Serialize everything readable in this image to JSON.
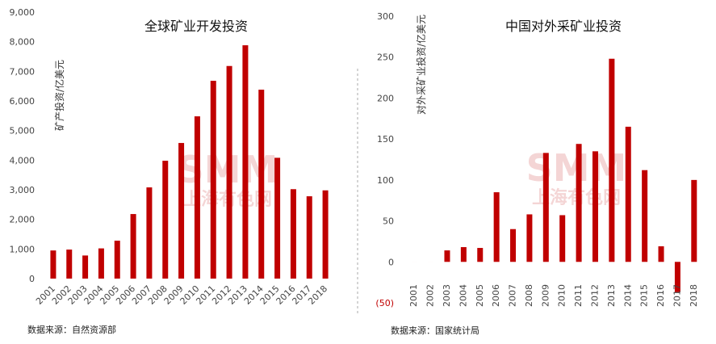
{
  "chart_data": [
    {
      "type": "bar",
      "title": "全球矿业开发投资",
      "ylabel": "矿产投资/亿美元",
      "xlabel": "",
      "ylim": [
        0,
        9000
      ],
      "yticks": [
        "0",
        "1,000",
        "2,000",
        "3,000",
        "4,000",
        "5,000",
        "6,000",
        "7,000",
        "8,000",
        "9,000"
      ],
      "ytick_values": [
        0,
        1000,
        2000,
        3000,
        4000,
        5000,
        6000,
        7000,
        8000,
        9000
      ],
      "categories": [
        "2001",
        "2002",
        "2003",
        "2004",
        "2005",
        "2006",
        "2007",
        "2008",
        "2009",
        "2010",
        "2011",
        "2012",
        "2013",
        "2014",
        "2015",
        "2016",
        "2017",
        "2018"
      ],
      "values": [
        950,
        980,
        780,
        1020,
        1280,
        2180,
        3080,
        3980,
        4580,
        5480,
        6680,
        7180,
        7880,
        6380,
        4080,
        3020,
        2780,
        2980
      ],
      "color": "#c00000",
      "source": "数据来源：自然资源部"
    },
    {
      "type": "bar",
      "title": "中国对外采矿业投资",
      "ylabel": "对外采矿业投资/亿美元",
      "xlabel": "",
      "ylim": [
        -50,
        300
      ],
      "yticks": [
        "(50)",
        "0",
        "50",
        "100",
        "150",
        "200",
        "250",
        "300"
      ],
      "ytick_values": [
        -50,
        0,
        50,
        100,
        150,
        200,
        250,
        300
      ],
      "categories": [
        "2001",
        "2002",
        "2003",
        "2004",
        "2005",
        "2006",
        "2007",
        "2008",
        "2009",
        "2010",
        "2011",
        "2012",
        "2013",
        "2014",
        "2015",
        "2016",
        "2017",
        "2018"
      ],
      "values": [
        0,
        0,
        14,
        18,
        17,
        85,
        40,
        58,
        133,
        57,
        144,
        135,
        248,
        165,
        112,
        19,
        -37,
        100
      ],
      "color": "#c00000",
      "source": "数据来源：国家统计局"
    }
  ],
  "watermark": {
    "logo": "SMM",
    "text": "上海有色网"
  }
}
